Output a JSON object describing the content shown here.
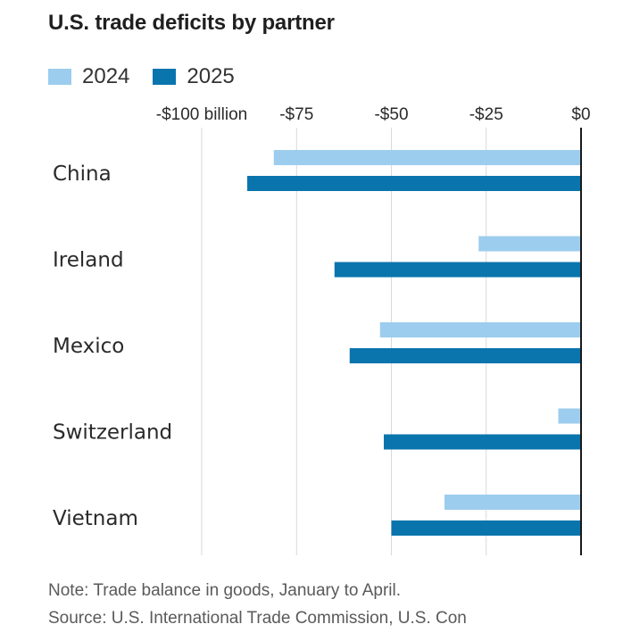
{
  "colors": {
    "series_2024": "#9ccdee",
    "series_2025": "#0a75ad",
    "grid": "#d9d9d9",
    "zero_line": "#1a1a1a"
  },
  "chart_data": {
    "type": "bar",
    "orientation": "horizontal",
    "title": "U.S. trade deficits by partner",
    "unit": "billion USD",
    "categories": [
      "China",
      "Ireland",
      "Mexico",
      "Switzerland",
      "Vietnam"
    ],
    "series": [
      {
        "name": "2024",
        "values": [
          -81,
          -27,
          -53,
          -6,
          -36
        ]
      },
      {
        "name": "2025",
        "values": [
          -88,
          -65,
          -61,
          -52,
          -50
        ]
      }
    ],
    "xlim": [
      -100,
      0
    ],
    "ticks": [
      -100,
      -75,
      -50,
      -25,
      0
    ],
    "tick_labels": [
      "-$100 billion",
      "-$75",
      "-$50",
      "-$25",
      "$0"
    ],
    "grid": true,
    "legend_position": "top-left"
  },
  "footer": {
    "note": "Note: Trade balance in goods, January to April.",
    "source": "Source: U.S. International Trade Commission, U.S. Con"
  }
}
